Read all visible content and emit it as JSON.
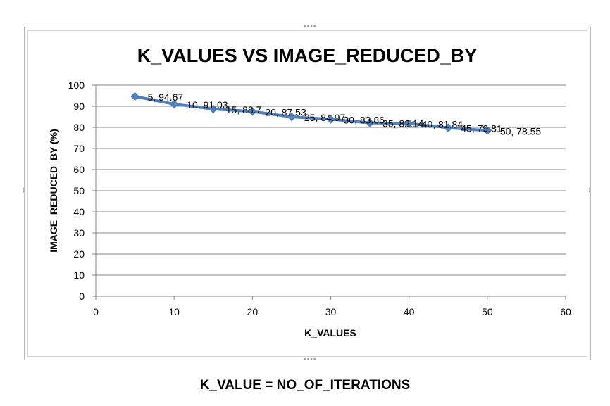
{
  "chart_data": {
    "type": "line",
    "title": "K_VALUES VS IMAGE_REDUCED_BY",
    "xlabel": "K_VALUES",
    "ylabel": "IMAGE_REDUCED_BY  (%)",
    "xlim": [
      0,
      60
    ],
    "ylim": [
      0,
      100
    ],
    "xticks": [
      0,
      10,
      20,
      30,
      40,
      50,
      60
    ],
    "yticks": [
      0,
      10,
      20,
      30,
      40,
      50,
      60,
      70,
      80,
      90,
      100
    ],
    "grid": "horizontal",
    "legend": "none",
    "series": [
      {
        "x": [
          5,
          10,
          15,
          20,
          25,
          30,
          35,
          40,
          45,
          50
        ],
        "values": [
          94.67,
          91.03,
          88.7,
          87.53,
          84.97,
          83.86,
          82.14,
          81.84,
          79.81,
          78.55
        ],
        "data_labels": [
          "5, 94.67",
          "10, 91.03",
          "15, 88.7",
          "20, 87.53",
          "25, 84.97",
          "30, 83.86",
          "35, 82.14",
          "40, 81.84",
          "45, 79.81",
          "50, 78.55"
        ]
      }
    ],
    "colors": {
      "line": "#4f81bd",
      "marker": "#4f81bd",
      "grid": "#868686",
      "axis": "#868686"
    }
  },
  "footer": {
    "text": "K_VALUE = NO_OF_ITERATIONS"
  }
}
